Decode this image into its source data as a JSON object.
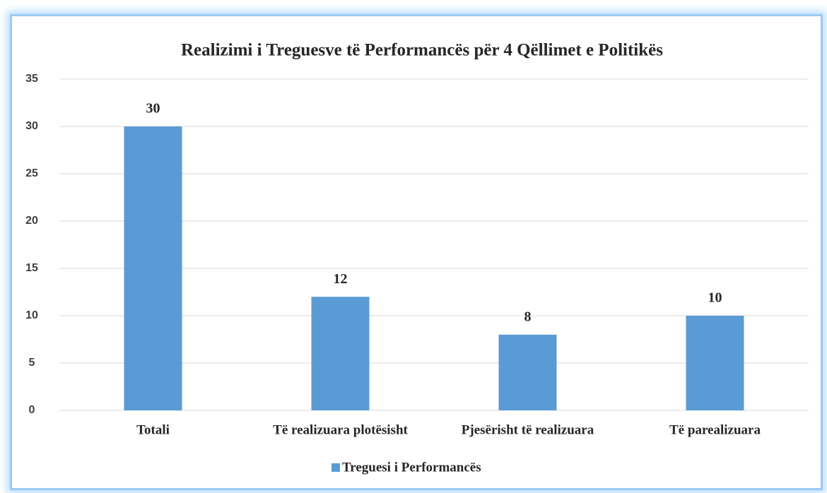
{
  "chart_data": {
    "type": "bar",
    "title": "Realizimi i Treguesve të Performancës për 4 Qëllimet e Politikës",
    "categories": [
      "Totali",
      "Të realizuara plotësisht",
      "Pjesërisht të realizuara",
      "Të parealizuara"
    ],
    "series": [
      {
        "name": "Treguesi i Performancës",
        "color": "#5b9bd5",
        "values": [
          30,
          12,
          8,
          10
        ]
      }
    ],
    "ylim": [
      0,
      35
    ],
    "yticks": [
      0,
      5,
      10,
      15,
      20,
      25,
      30,
      35
    ],
    "grid": true,
    "legend": "bottom"
  }
}
